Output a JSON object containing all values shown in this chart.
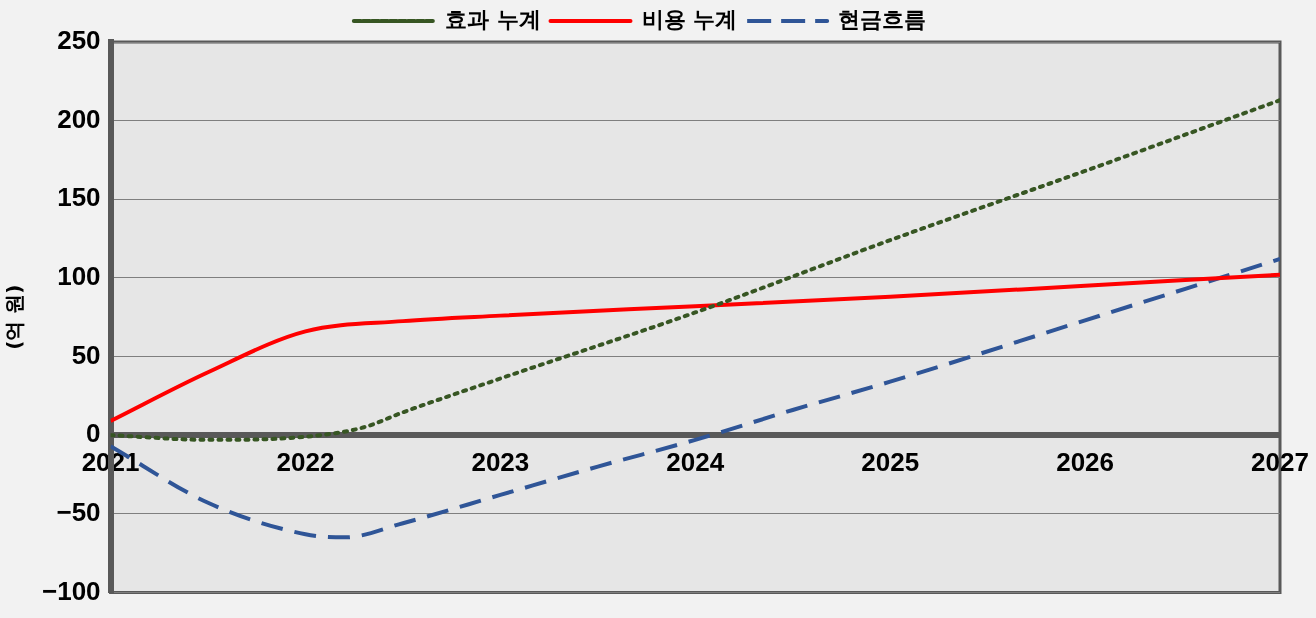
{
  "chart_data": {
    "type": "line",
    "ylabel": "(억 원)",
    "xlim": [
      2021,
      2027
    ],
    "ylim": [
      -100,
      250
    ],
    "xticks": [
      2021,
      2022,
      2023,
      2024,
      2025,
      2026,
      2027
    ],
    "yticks": [
      -100,
      -50,
      0,
      50,
      100,
      150,
      200,
      250
    ],
    "grid": "y",
    "legend": "top",
    "marker": "none",
    "series": [
      {
        "name": "효과 누계",
        "color": "#375623",
        "line_style": "dotted",
        "x": [
          2021,
          2021.5,
          2022,
          2022.3,
          2022.5,
          2023,
          2024,
          2025,
          2026,
          2027
        ],
        "values": [
          0,
          -3,
          -1,
          5,
          14.5,
          36,
          78,
          124,
          168,
          213
        ]
      },
      {
        "name": "비용 누계",
        "color": "#ff0000",
        "line_style": "solid",
        "x": [
          2021,
          2021.5,
          2022,
          2022.5,
          2023,
          2024,
          2025,
          2026,
          2027
        ],
        "values": [
          9,
          40,
          66,
          72.5,
          76,
          82,
          88,
          95,
          102
        ]
      },
      {
        "name": "현금흐름",
        "color": "#2f5597",
        "line_style": "dashed",
        "x": [
          2021,
          2021.5,
          2022,
          2022.2,
          2022.5,
          2023,
          2023.5,
          2024,
          2024.5,
          2025,
          2026,
          2027
        ],
        "values": [
          -7,
          -43,
          -63,
          -65,
          -56,
          -38,
          -20,
          -3,
          16,
          34,
          73,
          112
        ]
      }
    ]
  }
}
